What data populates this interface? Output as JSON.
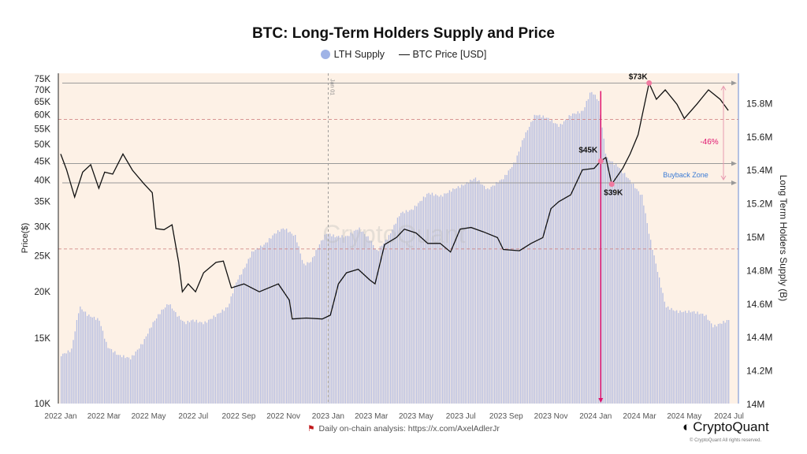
{
  "chart_data": {
    "type": "bar+line",
    "title": "BTC: Long-Term Holders Supply and Price",
    "legend": [
      {
        "name": "LTH Supply",
        "color": "#9fb3e6",
        "type": "bar"
      },
      {
        "name": "BTC Price [USD]",
        "color": "#111111",
        "type": "line"
      }
    ],
    "legend_placement": "top-center",
    "ylabel_left": "Price($)",
    "ylabel_right": "Long Term Holders Supply (B)",
    "y_left_scale": "log",
    "y_left_lim": [
      10000,
      80000
    ],
    "y_left_ticks": [
      "10K",
      "15K",
      "20K",
      "25K",
      "30K",
      "35K",
      "40K",
      "45K",
      "50K",
      "55K",
      "60K",
      "65K",
      "70K",
      "75K"
    ],
    "y_left_tick_values": [
      10000,
      15000,
      20000,
      25000,
      30000,
      35000,
      40000,
      45000,
      50000,
      55000,
      60000,
      65000,
      70000,
      75000
    ],
    "y_right_lim": [
      14.0,
      15.98
    ],
    "y_right_ticks": [
      "14M",
      "14.2M",
      "14.4M",
      "14.6M",
      "14.8M",
      "15M",
      "15.2M",
      "15.4M",
      "15.6M",
      "15.8M"
    ],
    "y_right_tick_values": [
      14.0,
      14.2,
      14.4,
      14.6,
      14.8,
      15.0,
      15.2,
      15.4,
      15.6,
      15.8
    ],
    "x_lim": [
      "2022-01-01",
      "2024-07-01"
    ],
    "x_ticks": [
      "2022 Jan",
      "2022 Mar",
      "2022 May",
      "2022 Jul",
      "2022 Sep",
      "2022 Nov",
      "2023 Jan",
      "2023 Mar",
      "2023 May",
      "2023 Jul",
      "2023 Sep",
      "2023 Nov",
      "2024 Jan",
      "2024 Mar",
      "2024 May",
      "2024 Jul"
    ],
    "x_tick_dates": [
      "2022-01-01",
      "2022-03-01",
      "2022-05-01",
      "2022-07-01",
      "2022-09-01",
      "2022-11-01",
      "2023-01-01",
      "2023-03-01",
      "2023-05-01",
      "2023-07-01",
      "2023-09-01",
      "2023-11-01",
      "2024-01-01",
      "2024-03-01",
      "2024-05-01",
      "2024-07-01"
    ],
    "price": [
      [
        "2022-01-01",
        47000
      ],
      [
        "2022-01-09",
        42700
      ],
      [
        "2022-01-20",
        36000
      ],
      [
        "2022-01-31",
        42000
      ],
      [
        "2022-02-11",
        44000
      ],
      [
        "2022-02-22",
        38000
      ],
      [
        "2022-03-02",
        42000
      ],
      [
        "2022-03-13",
        41500
      ],
      [
        "2022-03-27",
        47000
      ],
      [
        "2022-04-09",
        42500
      ],
      [
        "2022-04-25",
        39000
      ],
      [
        "2022-05-06",
        37000
      ],
      [
        "2022-05-11",
        29600
      ],
      [
        "2022-05-22",
        29400
      ],
      [
        "2022-06-02",
        30300
      ],
      [
        "2022-06-11",
        24000
      ],
      [
        "2022-06-16",
        20000
      ],
      [
        "2022-06-24",
        21000
      ],
      [
        "2022-07-04",
        20000
      ],
      [
        "2022-07-15",
        22500
      ],
      [
        "2022-08-01",
        24000
      ],
      [
        "2022-08-11",
        24200
      ],
      [
        "2022-08-22",
        20500
      ],
      [
        "2022-09-08",
        21000
      ],
      [
        "2022-09-29",
        20000
      ],
      [
        "2022-10-25",
        21000
      ],
      [
        "2022-11-09",
        19000
      ],
      [
        "2022-11-13",
        16900
      ],
      [
        "2022-12-02",
        17000
      ],
      [
        "2022-12-24",
        16900
      ],
      [
        "2023-01-04",
        17300
      ],
      [
        "2023-01-15",
        21000
      ],
      [
        "2023-01-26",
        22500
      ],
      [
        "2023-02-11",
        23000
      ],
      [
        "2023-02-27",
        21500
      ],
      [
        "2023-03-06",
        21000
      ],
      [
        "2023-03-19",
        26800
      ],
      [
        "2023-04-04",
        28000
      ],
      [
        "2023-04-15",
        29500
      ],
      [
        "2023-05-01",
        28800
      ],
      [
        "2023-05-17",
        27000
      ],
      [
        "2023-06-03",
        27000
      ],
      [
        "2023-06-17",
        25600
      ],
      [
        "2023-06-30",
        29500
      ],
      [
        "2023-07-15",
        29800
      ],
      [
        "2023-08-01",
        29000
      ],
      [
        "2023-08-20",
        28000
      ],
      [
        "2023-08-28",
        26000
      ],
      [
        "2023-09-19",
        25800
      ],
      [
        "2023-10-05",
        27000
      ],
      [
        "2023-10-21",
        28000
      ],
      [
        "2023-11-01",
        33500
      ],
      [
        "2023-11-12",
        35000
      ],
      [
        "2023-11-28",
        36500
      ],
      [
        "2023-12-14",
        42600
      ],
      [
        "2023-12-30",
        43000
      ],
      [
        "2024-01-08",
        45000
      ],
      [
        "2024-01-15",
        46000
      ],
      [
        "2024-01-23",
        39000
      ],
      [
        "2024-02-07",
        43000
      ],
      [
        "2024-02-17",
        47000
      ],
      [
        "2024-02-28",
        53000
      ],
      [
        "2024-03-06",
        61600
      ],
      [
        "2024-03-14",
        73000
      ],
      [
        "2024-03-24",
        66000
      ],
      [
        "2024-04-05",
        70000
      ],
      [
        "2024-04-21",
        64000
      ],
      [
        "2024-05-01",
        58600
      ],
      [
        "2024-05-18",
        64000
      ],
      [
        "2024-06-03",
        70000
      ],
      [
        "2024-06-19",
        66000
      ],
      [
        "2024-06-30",
        61600
      ]
    ],
    "lth_supply_millions": [
      [
        "2022-01-01",
        14.29
      ],
      [
        "2022-01-15",
        14.32
      ],
      [
        "2022-01-26",
        14.58
      ],
      [
        "2022-02-06",
        14.53
      ],
      [
        "2022-02-22",
        14.5
      ],
      [
        "2022-03-05",
        14.34
      ],
      [
        "2022-03-20",
        14.29
      ],
      [
        "2022-04-06",
        14.27
      ],
      [
        "2022-04-22",
        14.36
      ],
      [
        "2022-05-06",
        14.48
      ],
      [
        "2022-05-17",
        14.55
      ],
      [
        "2022-05-28",
        14.6
      ],
      [
        "2022-06-08",
        14.53
      ],
      [
        "2022-06-19",
        14.48
      ],
      [
        "2022-06-29",
        14.5
      ],
      [
        "2022-07-15",
        14.48
      ],
      [
        "2022-08-01",
        14.53
      ],
      [
        "2022-08-17",
        14.58
      ],
      [
        "2022-08-27",
        14.72
      ],
      [
        "2022-09-08",
        14.81
      ],
      [
        "2022-09-19",
        14.91
      ],
      [
        "2022-10-05",
        14.95
      ],
      [
        "2022-10-20",
        15.02
      ],
      [
        "2022-11-01",
        15.05
      ],
      [
        "2022-11-17",
        15.0
      ],
      [
        "2022-11-28",
        14.83
      ],
      [
        "2022-12-08",
        14.85
      ],
      [
        "2022-12-19",
        14.95
      ],
      [
        "2022-12-29",
        15.02
      ],
      [
        "2023-01-10",
        15.0
      ],
      [
        "2023-01-26",
        15.0
      ],
      [
        "2023-02-11",
        15.05
      ],
      [
        "2023-02-27",
        14.98
      ],
      [
        "2023-03-08",
        14.91
      ],
      [
        "2023-03-24",
        15.0
      ],
      [
        "2023-04-09",
        15.14
      ],
      [
        "2023-04-25",
        15.16
      ],
      [
        "2023-05-17",
        15.26
      ],
      [
        "2023-06-03",
        15.24
      ],
      [
        "2023-06-19",
        15.28
      ],
      [
        "2023-07-05",
        15.31
      ],
      [
        "2023-07-20",
        15.35
      ],
      [
        "2023-08-06",
        15.28
      ],
      [
        "2023-08-28",
        15.35
      ],
      [
        "2023-09-13",
        15.45
      ],
      [
        "2023-09-24",
        15.59
      ],
      [
        "2023-10-10",
        15.73
      ],
      [
        "2023-10-26",
        15.71
      ],
      [
        "2023-11-12",
        15.66
      ],
      [
        "2023-11-28",
        15.73
      ],
      [
        "2023-12-14",
        15.75
      ],
      [
        "2023-12-25",
        15.87
      ],
      [
        "2024-01-04",
        15.82
      ],
      [
        "2024-01-15",
        15.47
      ],
      [
        "2024-01-31",
        15.42
      ],
      [
        "2024-02-17",
        15.33
      ],
      [
        "2024-03-04",
        15.24
      ],
      [
        "2024-03-14",
        15.0
      ],
      [
        "2024-03-24",
        14.81
      ],
      [
        "2024-04-05",
        14.58
      ],
      [
        "2024-04-21",
        14.55
      ],
      [
        "2024-05-12",
        14.55
      ],
      [
        "2024-05-29",
        14.53
      ],
      [
        "2024-06-09",
        14.46
      ],
      [
        "2024-06-19",
        14.48
      ],
      [
        "2024-06-30",
        14.5
      ]
    ],
    "reference_lines_price": [
      73000,
      44300,
      39300
    ],
    "reference_lines_supply_dashed": [
      15.7,
      14.925
    ],
    "vertical_marker": {
      "date": "2023-01-01",
      "label": "Jan 01"
    },
    "highlight_arrow": {
      "date": "2024-01-08",
      "from_supply": 15.87,
      "to_supply": 14.0,
      "color": "#e0146e"
    },
    "annotations": [
      {
        "label": "$73K",
        "date": "2024-03-14",
        "price": 73000
      },
      {
        "label": "$45K",
        "date": "2024-01-08",
        "price": 45000
      },
      {
        "label": "$39K",
        "date": "2024-01-23",
        "price": 39000
      }
    ],
    "drawdown": {
      "label": "-46%",
      "from_price": 73000,
      "to_price": 39300,
      "color": "#e0146e"
    },
    "zone_label": "Buyback Zone",
    "watermark": "CryptoQuant",
    "colors": {
      "plot_bg": "#fdf1e6",
      "bar": "#a8b4e0",
      "line": "#111111",
      "accent": "#e0146e",
      "zone": "#3a7bd5"
    }
  },
  "footer": {
    "source": "Daily on-chain analysis: https://x.com/AxelAdlerJr",
    "brand": "CryptoQuant",
    "copyright": "© CryptoQuant All rights reserved."
  }
}
